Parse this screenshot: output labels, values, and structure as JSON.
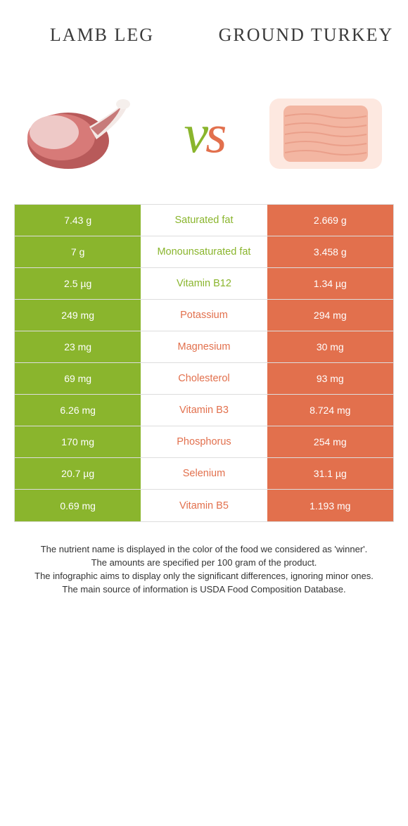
{
  "colors": {
    "left": "#8ab52d",
    "right": "#e2704d",
    "row_border": "#dddddd",
    "text_dark": "#3a3a3a",
    "white": "#ffffff"
  },
  "header": {
    "left_title": "Lamb leg",
    "right_title": "Ground turkey"
  },
  "vs": {
    "v": "v",
    "s": "s"
  },
  "rows": [
    {
      "left": "7.43 g",
      "label": "Saturated fat",
      "right": "2.669 g",
      "winner": "left"
    },
    {
      "left": "7 g",
      "label": "Monounsaturated fat",
      "right": "3.458 g",
      "winner": "left"
    },
    {
      "left": "2.5 µg",
      "label": "Vitamin B12",
      "right": "1.34 µg",
      "winner": "left"
    },
    {
      "left": "249 mg",
      "label": "Potassium",
      "right": "294 mg",
      "winner": "right"
    },
    {
      "left": "23 mg",
      "label": "Magnesium",
      "right": "30 mg",
      "winner": "right"
    },
    {
      "left": "69 mg",
      "label": "Cholesterol",
      "right": "93 mg",
      "winner": "right"
    },
    {
      "left": "6.26 mg",
      "label": "Vitamin B3",
      "right": "8.724 mg",
      "winner": "right"
    },
    {
      "left": "170 mg",
      "label": "Phosphorus",
      "right": "254 mg",
      "winner": "right"
    },
    {
      "left": "20.7 µg",
      "label": "Selenium",
      "right": "31.1 µg",
      "winner": "right"
    },
    {
      "left": "0.69 mg",
      "label": "Vitamin B5",
      "right": "1.193 mg",
      "winner": "right"
    }
  ],
  "footer": {
    "line1": "The nutrient name is displayed in the color of the food we considered as 'winner'.",
    "line2": "The amounts are specified per 100 gram of the product.",
    "line3": "The infographic aims to display only the significant differences, ignoring minor ones.",
    "line4": "The main source of information is USDA Food Composition Database."
  }
}
